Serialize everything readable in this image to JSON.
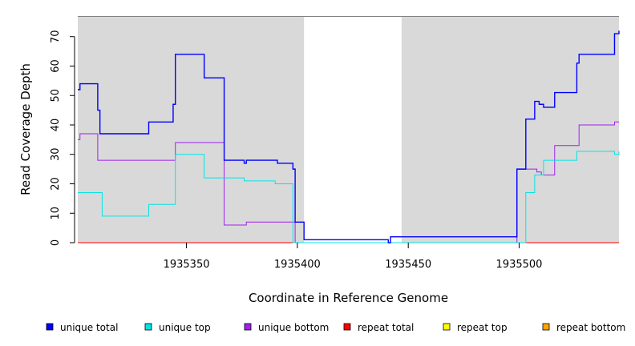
{
  "chart_data": {
    "type": "line",
    "step": true,
    "title": "",
    "xlabel": "Coordinate in Reference Genome",
    "ylabel": "Read Coverage Depth",
    "xlim": [
      1935301,
      1935545
    ],
    "ylim": [
      0,
      77
    ],
    "xticks": [
      1935350,
      1935400,
      1935450,
      1935500
    ],
    "xtick_labels": [
      "1935350",
      "1935400",
      "1935450",
      "1935500"
    ],
    "yticks": [
      0,
      10,
      20,
      30,
      40,
      50,
      60,
      70
    ],
    "ytick_labels": [
      "0",
      "10",
      "20",
      "30",
      "40",
      "50",
      "60",
      "70"
    ],
    "shaded_regions": [
      {
        "from": 1935301,
        "to": 1935403,
        "color": "#d9d9d9"
      },
      {
        "from": 1935447,
        "to": 1935545,
        "color": "#d9d9d9"
      }
    ],
    "legend_position": "bottom",
    "series": [
      {
        "name": "unique total",
        "color": "#0000ff",
        "x": [
          1935301,
          1935302,
          1935310,
          1935311,
          1935333,
          1935344,
          1935345,
          1935358,
          1935367,
          1935376,
          1935377,
          1935391,
          1935398,
          1935399,
          1935403,
          1935441,
          1935442,
          1935499,
          1935503,
          1935507,
          1935509,
          1935511,
          1935516,
          1935526,
          1935527,
          1935543,
          1935545
        ],
        "y": [
          52,
          54,
          45,
          37,
          41,
          47,
          64,
          56,
          28,
          27,
          28,
          27,
          25,
          7,
          1,
          0,
          2,
          25,
          42,
          48,
          47,
          46,
          51,
          61,
          64,
          71,
          72
        ]
      },
      {
        "name": "unique top",
        "color": "#00e5e5",
        "x": [
          1935301,
          1935312,
          1935333,
          1935345,
          1935358,
          1935376,
          1935390,
          1935398,
          1935503,
          1935507,
          1935511,
          1935526,
          1935543,
          1935545
        ],
        "y": [
          17,
          9,
          13,
          30,
          22,
          21,
          20,
          0,
          17,
          23,
          28,
          31,
          30,
          31
        ]
      },
      {
        "name": "unique bottom",
        "color": "#a020f0",
        "x": [
          1935301,
          1935302,
          1935310,
          1935345,
          1935367,
          1935377,
          1935399,
          1935499,
          1935508,
          1935510,
          1935516,
          1935527,
          1935543,
          1935545
        ],
        "y": [
          35,
          37,
          28,
          34,
          6,
          7,
          0,
          25,
          24,
          23,
          33,
          40,
          41,
          41
        ]
      },
      {
        "name": "repeat total",
        "color": "#ff0000",
        "x": [
          1935301,
          1935545
        ],
        "y": [
          0,
          0
        ]
      },
      {
        "name": "repeat top",
        "color": "#ffff00",
        "x": [
          1935301,
          1935545
        ],
        "y": [
          0,
          0
        ]
      },
      {
        "name": "repeat bottom",
        "color": "#ffa500",
        "x": [
          1935301,
          1935545
        ],
        "y": [
          0,
          0
        ]
      }
    ]
  }
}
